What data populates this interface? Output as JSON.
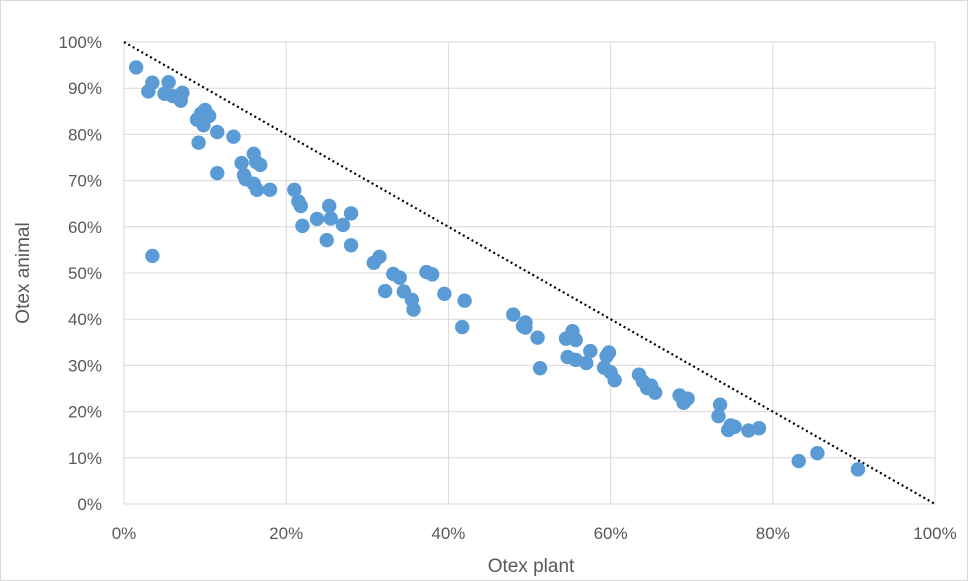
{
  "chart_data": {
    "type": "scatter",
    "title": "",
    "xlabel": "Otex plant",
    "ylabel": "Otex animal",
    "xlim": [
      0,
      1
    ],
    "ylim": [
      0,
      1
    ],
    "x_ticks": [
      "0%",
      "20%",
      "40%",
      "60%",
      "80%",
      "100%"
    ],
    "y_ticks": [
      "0%",
      "10%",
      "20%",
      "30%",
      "40%",
      "50%",
      "60%",
      "70%",
      "80%",
      "90%",
      "100%"
    ],
    "grid": "horizontal and vertical",
    "legend": "none",
    "colors": {
      "points": "#5b9bd5",
      "grid": "#d9d9d9",
      "reference_line": "#000000",
      "text": "#595959"
    },
    "reference_line": {
      "style": "dotted",
      "x": [
        0,
        1
      ],
      "y": [
        1,
        0
      ]
    },
    "series": [
      {
        "points": [
          [
            0.015,
            0.945
          ],
          [
            0.035,
            0.912
          ],
          [
            0.055,
            0.913
          ],
          [
            0.03,
            0.893
          ],
          [
            0.05,
            0.888
          ],
          [
            0.06,
            0.883
          ],
          [
            0.072,
            0.89
          ],
          [
            0.07,
            0.873
          ],
          [
            0.035,
            0.537
          ],
          [
            0.09,
            0.832
          ],
          [
            0.095,
            0.845
          ],
          [
            0.1,
            0.853
          ],
          [
            0.105,
            0.84
          ],
          [
            0.098,
            0.82
          ],
          [
            0.092,
            0.782
          ],
          [
            0.115,
            0.805
          ],
          [
            0.135,
            0.795
          ],
          [
            0.115,
            0.716
          ],
          [
            0.145,
            0.738
          ],
          [
            0.148,
            0.712
          ],
          [
            0.15,
            0.703
          ],
          [
            0.16,
            0.758
          ],
          [
            0.163,
            0.74
          ],
          [
            0.168,
            0.734
          ],
          [
            0.16,
            0.693
          ],
          [
            0.164,
            0.68
          ],
          [
            0.18,
            0.68
          ],
          [
            0.21,
            0.68
          ],
          [
            0.215,
            0.655
          ],
          [
            0.218,
            0.645
          ],
          [
            0.22,
            0.602
          ],
          [
            0.238,
            0.617
          ],
          [
            0.253,
            0.645
          ],
          [
            0.255,
            0.618
          ],
          [
            0.25,
            0.571
          ],
          [
            0.27,
            0.604
          ],
          [
            0.28,
            0.629
          ],
          [
            0.28,
            0.56
          ],
          [
            0.308,
            0.522
          ],
          [
            0.315,
            0.535
          ],
          [
            0.322,
            0.461
          ],
          [
            0.332,
            0.498
          ],
          [
            0.34,
            0.49
          ],
          [
            0.345,
            0.46
          ],
          [
            0.355,
            0.442
          ],
          [
            0.357,
            0.421
          ],
          [
            0.373,
            0.502
          ],
          [
            0.38,
            0.497
          ],
          [
            0.395,
            0.455
          ],
          [
            0.417,
            0.383
          ],
          [
            0.42,
            0.44
          ],
          [
            0.48,
            0.41
          ],
          [
            0.492,
            0.385
          ],
          [
            0.495,
            0.393
          ],
          [
            0.495,
            0.382
          ],
          [
            0.51,
            0.36
          ],
          [
            0.513,
            0.294
          ],
          [
            0.545,
            0.358
          ],
          [
            0.553,
            0.374
          ],
          [
            0.557,
            0.355
          ],
          [
            0.547,
            0.318
          ],
          [
            0.557,
            0.312
          ],
          [
            0.57,
            0.305
          ],
          [
            0.575,
            0.331
          ],
          [
            0.592,
            0.295
          ],
          [
            0.595,
            0.32
          ],
          [
            0.598,
            0.328
          ],
          [
            0.6,
            0.285
          ],
          [
            0.605,
            0.268
          ],
          [
            0.635,
            0.28
          ],
          [
            0.64,
            0.265
          ],
          [
            0.645,
            0.251
          ],
          [
            0.65,
            0.256
          ],
          [
            0.655,
            0.241
          ],
          [
            0.685,
            0.235
          ],
          [
            0.69,
            0.219
          ],
          [
            0.695,
            0.228
          ],
          [
            0.735,
            0.215
          ],
          [
            0.733,
            0.19
          ],
          [
            0.745,
            0.16
          ],
          [
            0.748,
            0.17
          ],
          [
            0.753,
            0.167
          ],
          [
            0.77,
            0.159
          ],
          [
            0.783,
            0.164
          ],
          [
            0.832,
            0.093
          ],
          [
            0.855,
            0.11
          ],
          [
            0.905,
            0.075
          ]
        ]
      }
    ]
  }
}
